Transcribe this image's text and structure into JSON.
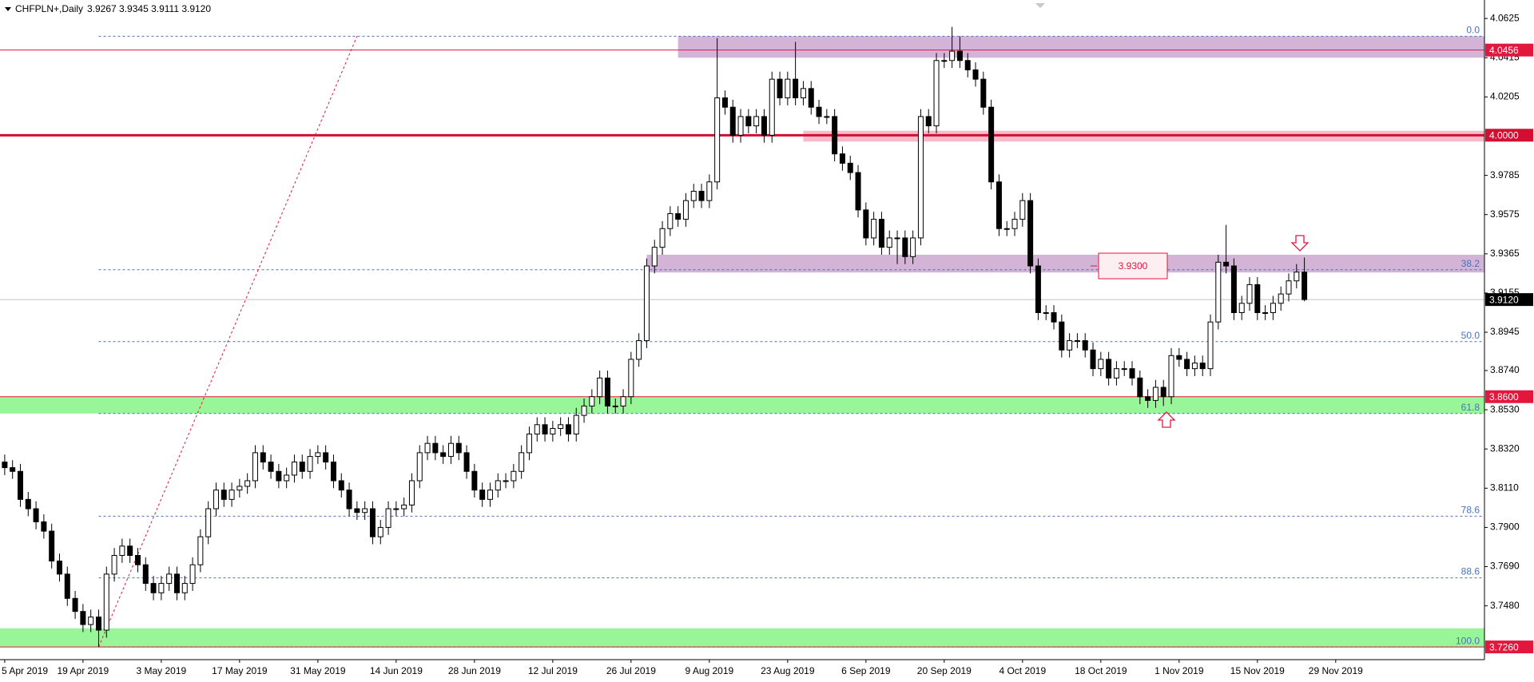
{
  "header": {
    "symbol": "CHFPLN+,Daily",
    "quote": "3.9267 3.9345 3.9111 3.9120"
  },
  "chart_data": {
    "type": "candlestick",
    "xlim": [
      -0.6,
      189
    ],
    "ylim": [
      3.7192,
      4.0724
    ],
    "xticks": [
      {
        "value": 0,
        "label": "5 Apr 2019"
      },
      {
        "value": 10,
        "label": "19 Apr 2019"
      },
      {
        "value": 20,
        "label": "3 May 2019"
      },
      {
        "value": 30,
        "label": "17 May 2019"
      },
      {
        "value": 40,
        "label": "31 May 2019"
      },
      {
        "value": 50,
        "label": "14 Jun 2019"
      },
      {
        "value": 60,
        "label": "28 Jun 2019"
      },
      {
        "value": 70,
        "label": "12 Jul 2019"
      },
      {
        "value": 80,
        "label": "26 Jul 2019"
      },
      {
        "value": 90,
        "label": "9 Aug 2019"
      },
      {
        "value": 100,
        "label": "23 Aug 2019"
      },
      {
        "value": 110,
        "label": "6 Sep 2019"
      },
      {
        "value": 120,
        "label": "20 Sep 2019"
      },
      {
        "value": 130,
        "label": "4 Oct 2019"
      },
      {
        "value": 140,
        "label": "18 Oct 2019"
      },
      {
        "value": 150,
        "label": "1 Nov 2019"
      },
      {
        "value": 160,
        "label": "15 Nov 2019"
      },
      {
        "value": 170,
        "label": "29 Nov 2019"
      }
    ],
    "yticks": [
      4.0625,
      4.0415,
      4.0205,
      3.9785,
      3.9575,
      3.9365,
      3.9155,
      3.8945,
      {
        "value": 3.874,
        "label": "3.8740"
      },
      {
        "value": 3.853,
        "label": "3.8530"
      },
      {
        "value": 3.832,
        "label": "3.8320"
      },
      {
        "value": 3.811,
        "label": "3.8110"
      },
      {
        "value": 3.79,
        "label": "3.7900"
      },
      {
        "value": 3.769,
        "label": "3.7690"
      },
      {
        "value": 3.748,
        "label": "3.7480"
      }
    ],
    "open": [
      3.825,
      3.822,
      3.82,
      3.805,
      3.8,
      3.793,
      3.788,
      3.772,
      3.765,
      3.752,
      3.745,
      3.738,
      3.742,
      3.735,
      3.765,
      3.775,
      3.78,
      3.775,
      3.77,
      3.76,
      3.755,
      3.76,
      3.765,
      3.755,
      3.76,
      3.77,
      3.785,
      3.8,
      3.81,
      3.805,
      3.81,
      3.812,
      3.815,
      3.83,
      3.825,
      3.82,
      3.815,
      3.818,
      3.825,
      3.82,
      3.828,
      3.83,
      3.825,
      3.815,
      3.81,
      3.8,
      3.798,
      3.8,
      3.785,
      3.79,
      3.8,
      3.8,
      3.802,
      3.815,
      3.83,
      3.835,
      3.83,
      3.828,
      3.835,
      3.83,
      3.82,
      3.81,
      3.805,
      3.81,
      3.815,
      3.815,
      3.82,
      3.83,
      3.84,
      3.845,
      3.84,
      3.843,
      3.845,
      3.84,
      3.85,
      3.855,
      3.86,
      3.87,
      3.855,
      3.855,
      3.86,
      3.88,
      3.89,
      3.93,
      3.94,
      3.95,
      3.958,
      3.955,
      3.965,
      3.97,
      3.965,
      3.975,
      4.02,
      4.015,
      4.0,
      4.01,
      4.005,
      4.01,
      4.0,
      4.03,
      4.02,
      4.03,
      4.02,
      4.025,
      4.015,
      4.01,
      4.01,
      3.99,
      3.985,
      3.98,
      3.96,
      3.945,
      3.955,
      3.94,
      3.945,
      3.945,
      3.935,
      3.945,
      4.01,
      4.005,
      4.04,
      4.04,
      4.045,
      4.04,
      4.035,
      4.03,
      4.015,
      3.975,
      3.95,
      3.95,
      3.955,
      3.965,
      3.93,
      3.905,
      3.905,
      3.9,
      3.885,
      3.89,
      3.89,
      3.885,
      3.875,
      3.88,
      3.87,
      3.875,
      3.875,
      3.87,
      3.86,
      3.858,
      3.865,
      3.86,
      3.882,
      3.88,
      3.875,
      3.878,
      3.875,
      3.9,
      3.932,
      3.93,
      3.905,
      3.91,
      3.92,
      3.905,
      3.905,
      3.91,
      3.915,
      3.922,
      3.9267
    ],
    "high": [
      3.829,
      3.826,
      3.824,
      3.809,
      3.804,
      3.797,
      3.792,
      3.776,
      3.769,
      3.756,
      3.749,
      3.746,
      3.746,
      3.769,
      3.779,
      3.784,
      3.784,
      3.779,
      3.774,
      3.764,
      3.764,
      3.769,
      3.769,
      3.764,
      3.774,
      3.789,
      3.804,
      3.814,
      3.814,
      3.814,
      3.816,
      3.819,
      3.834,
      3.834,
      3.829,
      3.824,
      3.822,
      3.829,
      3.829,
      3.832,
      3.834,
      3.834,
      3.829,
      3.819,
      3.814,
      3.804,
      3.804,
      3.804,
      3.794,
      3.804,
      3.804,
      3.806,
      3.819,
      3.834,
      3.839,
      3.839,
      3.834,
      3.839,
      3.839,
      3.834,
      3.824,
      3.814,
      3.814,
      3.819,
      3.819,
      3.824,
      3.834,
      3.844,
      3.849,
      3.849,
      3.847,
      3.849,
      3.849,
      3.854,
      3.859,
      3.864,
      3.874,
      3.874,
      3.859,
      3.864,
      3.884,
      3.894,
      3.934,
      3.944,
      3.954,
      3.962,
      3.962,
      3.969,
      3.974,
      3.974,
      3.979,
      4.052,
      4.024,
      4.019,
      4.014,
      4.014,
      4.014,
      4.014,
      4.034,
      4.034,
      4.034,
      4.05,
      4.029,
      4.029,
      4.019,
      4.014,
      4.014,
      3.994,
      3.989,
      3.984,
      3.964,
      3.959,
      3.959,
      3.949,
      3.949,
      3.949,
      3.949,
      4.014,
      4.014,
      4.044,
      4.044,
      4.058,
      4.053,
      4.044,
      4.039,
      4.034,
      4.019,
      3.979,
      3.954,
      3.959,
      3.969,
      3.969,
      3.934,
      3.909,
      3.909,
      3.904,
      3.894,
      3.894,
      3.894,
      3.889,
      3.884,
      3.884,
      3.879,
      3.879,
      3.879,
      3.874,
      3.864,
      3.869,
      3.869,
      3.886,
      3.886,
      3.884,
      3.882,
      3.882,
      3.904,
      3.936,
      3.952,
      3.934,
      3.914,
      3.924,
      3.924,
      3.909,
      3.914,
      3.919,
      3.926,
      3.931,
      3.9345
    ],
    "low": [
      3.818,
      3.816,
      3.801,
      3.796,
      3.789,
      3.784,
      3.768,
      3.761,
      3.748,
      3.741,
      3.734,
      3.734,
      3.726,
      3.731,
      3.761,
      3.771,
      3.771,
      3.766,
      3.756,
      3.751,
      3.751,
      3.756,
      3.751,
      3.751,
      3.756,
      3.766,
      3.781,
      3.796,
      3.801,
      3.801,
      3.806,
      3.808,
      3.811,
      3.821,
      3.816,
      3.811,
      3.811,
      3.814,
      3.816,
      3.816,
      3.824,
      3.821,
      3.811,
      3.806,
      3.796,
      3.794,
      3.794,
      3.781,
      3.781,
      3.786,
      3.796,
      3.796,
      3.798,
      3.811,
      3.826,
      3.826,
      3.824,
      3.824,
      3.826,
      3.816,
      3.806,
      3.801,
      3.801,
      3.806,
      3.811,
      3.811,
      3.816,
      3.826,
      3.836,
      3.836,
      3.836,
      3.839,
      3.836,
      3.836,
      3.846,
      3.851,
      3.856,
      3.851,
      3.851,
      3.851,
      3.856,
      3.876,
      3.886,
      3.926,
      3.936,
      3.946,
      3.951,
      3.951,
      3.961,
      3.961,
      3.961,
      3.971,
      4.011,
      3.996,
      3.996,
      4.001,
      4.001,
      3.996,
      3.996,
      4.016,
      4.016,
      4.016,
      4.016,
      4.011,
      4.006,
      4.006,
      3.986,
      3.981,
      3.976,
      3.956,
      3.941,
      3.941,
      3.936,
      3.936,
      3.931,
      3.931,
      3.931,
      3.941,
      4.001,
      4.001,
      4.036,
      4.036,
      4.036,
      4.031,
      4.026,
      4.011,
      3.971,
      3.946,
      3.946,
      3.946,
      3.951,
      3.926,
      3.901,
      3.901,
      3.896,
      3.881,
      3.881,
      3.886,
      3.881,
      3.871,
      3.871,
      3.866,
      3.866,
      3.871,
      3.866,
      3.856,
      3.854,
      3.854,
      3.855,
      3.856,
      3.876,
      3.871,
      3.871,
      3.871,
      3.871,
      3.896,
      3.926,
      3.901,
      3.901,
      3.906,
      3.901,
      3.901,
      3.901,
      3.906,
      3.911,
      3.918,
      3.9111
    ],
    "close": [
      3.822,
      3.82,
      3.805,
      3.8,
      3.793,
      3.788,
      3.772,
      3.765,
      3.752,
      3.745,
      3.738,
      3.742,
      3.735,
      3.765,
      3.775,
      3.78,
      3.775,
      3.77,
      3.76,
      3.755,
      3.76,
      3.765,
      3.755,
      3.76,
      3.77,
      3.785,
      3.8,
      3.81,
      3.805,
      3.81,
      3.812,
      3.815,
      3.83,
      3.825,
      3.82,
      3.815,
      3.818,
      3.825,
      3.82,
      3.828,
      3.83,
      3.825,
      3.815,
      3.81,
      3.8,
      3.798,
      3.8,
      3.785,
      3.79,
      3.8,
      3.8,
      3.802,
      3.815,
      3.83,
      3.835,
      3.83,
      3.828,
      3.835,
      3.83,
      3.82,
      3.81,
      3.805,
      3.81,
      3.815,
      3.815,
      3.82,
      3.83,
      3.84,
      3.845,
      3.84,
      3.843,
      3.845,
      3.84,
      3.85,
      3.855,
      3.86,
      3.87,
      3.855,
      3.855,
      3.86,
      3.88,
      3.89,
      3.93,
      3.94,
      3.95,
      3.958,
      3.955,
      3.965,
      3.97,
      3.965,
      3.975,
      4.02,
      4.015,
      4.0,
      4.01,
      4.005,
      4.01,
      4.0,
      4.03,
      4.02,
      4.03,
      4.02,
      4.025,
      4.015,
      4.01,
      4.01,
      3.99,
      3.985,
      3.98,
      3.96,
      3.945,
      3.955,
      3.94,
      3.945,
      3.945,
      3.935,
      3.945,
      4.01,
      4.005,
      4.04,
      4.04,
      4.045,
      4.04,
      4.035,
      4.03,
      4.015,
      3.975,
      3.95,
      3.95,
      3.955,
      3.965,
      3.93,
      3.905,
      3.905,
      3.9,
      3.885,
      3.89,
      3.89,
      3.885,
      3.875,
      3.88,
      3.87,
      3.875,
      3.875,
      3.87,
      3.86,
      3.858,
      3.865,
      3.86,
      3.882,
      3.88,
      3.875,
      3.878,
      3.875,
      3.9,
      3.932,
      3.93,
      3.905,
      3.91,
      3.92,
      3.905,
      3.905,
      3.91,
      3.915,
      3.922,
      3.9267,
      3.912
    ],
    "zones": [
      {
        "low": 4.0415,
        "high": 4.053,
        "from": 86,
        "color": "#d3b3d6"
      },
      {
        "low": 3.9966,
        "high": 4.0024,
        "from": 102,
        "color": "#f7bccb"
      },
      {
        "low": 3.9265,
        "high": 3.936,
        "from": 82,
        "color": "#d3b3d6"
      },
      {
        "low": 3.851,
        "high": 3.86,
        "color": "#98f598"
      },
      {
        "low": 3.726,
        "high": 3.736,
        "color": "#98f598"
      }
    ],
    "levels": [
      {
        "value": 4.0456,
        "label": "4.0456",
        "color": "#e3173e",
        "width": 1
      },
      {
        "value": 4,
        "label": "4.0000",
        "color": "#d20f33",
        "width": 3
      },
      {
        "value": 3.86,
        "label": "3.8600",
        "color": "#e3173e",
        "width": 1
      },
      {
        "value": 3.726,
        "label": "3.7260",
        "color": "#e3173e",
        "width": 1
      }
    ],
    "current": {
      "value": 3.912,
      "label": "3.9120",
      "color": "#000000"
    },
    "fibonacci": {
      "from": 12,
      "color": "#4a72b8",
      "levels": [
        {
          "value": 4.053,
          "label": "0.0"
        },
        {
          "value": 3.928,
          "label": "38.2"
        },
        {
          "value": 3.8895,
          "label": "50.0"
        },
        {
          "value": 3.851,
          "label": "61.8"
        },
        {
          "value": 3.796,
          "label": "78.6"
        },
        {
          "value": 3.763,
          "label": "88.6"
        },
        {
          "value": 3.726,
          "label": "100.0"
        }
      ]
    },
    "trendline": {
      "x": [
        12,
        45
      ],
      "y": [
        3.726,
        4.053
      ],
      "color": "#e3173e"
    },
    "annotation": {
      "value": 3.93,
      "label": "3.9300",
      "index": 144,
      "color": "#e3173e"
    }
  }
}
